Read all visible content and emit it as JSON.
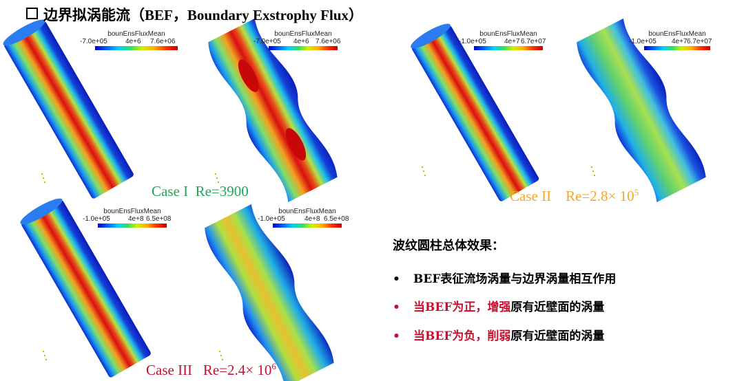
{
  "title": "边界拟涡能流（BEF，Boundary Exstrophy Flux）",
  "title_icon": "square-bullet-icon",
  "colorbars": [
    {
      "title": "bounEnsFluxMean",
      "ticks": [
        "-7.0e+05",
        "4e+6",
        "7.6e+06"
      ]
    },
    {
      "title": "bounEnsFluxMean",
      "ticks": [
        "-7.0e+05",
        "4e+6",
        "7.6e+06"
      ]
    },
    {
      "title": "bounEnsFluxMean",
      "ticks": [
        "-1.0e+05",
        "4e+7",
        "6.7e+07"
      ]
    },
    {
      "title": "bounEnsFluxMean",
      "ticks": [
        "-1.0e+05",
        "4e+7",
        "6.7e+07"
      ]
    },
    {
      "title": "bounEnsFluxMean",
      "ticks": [
        "-1.0e+05",
        "4e+8",
        "6.5e+08"
      ]
    },
    {
      "title": "bounEnsFluxMean",
      "ticks": [
        "-1.0e+05",
        "4e+8",
        "6.5e+08"
      ]
    }
  ],
  "cases": [
    {
      "name": "Case I",
      "re_base": "Re=3900",
      "re_exp": ""
    },
    {
      "name": "Case II",
      "re_base": "Re=2.8× 10",
      "re_exp": "5"
    },
    {
      "name": "Case III",
      "re_base": "Re=2.4× 10",
      "re_exp": "6"
    }
  ],
  "summary": {
    "heading": "波纹圆柱总体效果：",
    "bullets": [
      {
        "marker": "•",
        "text": "BEF表征流场涡量与边界涡量相互作用"
      },
      {
        "marker": "•",
        "pre": "当BEF为正，",
        "emph": "增强",
        "post": "原有近壁面的涡量"
      },
      {
        "marker": "•",
        "pre": "当BEF为负，",
        "emph": "削弱",
        "post": "原有近壁面的涡量"
      }
    ]
  },
  "colors": {
    "case1": "#21a65a",
    "case2": "#f5a623",
    "case3": "#c8102e",
    "highlight": "#c8102e"
  }
}
